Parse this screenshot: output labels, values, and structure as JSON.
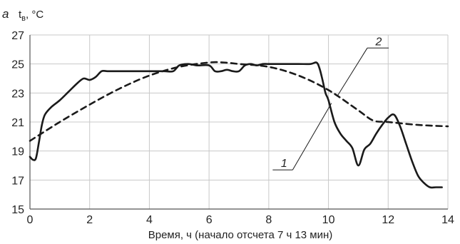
{
  "chart_data": {
    "type": "line",
    "panel_letter": "а",
    "ylabel_main": "t",
    "ylabel_sub": "в",
    "ylabel_unit": ", °C",
    "xlabel": "Время, ч (начало отсчета 7 ч 13 мин)",
    "xlim": [
      0,
      14
    ],
    "ylim": [
      15,
      27
    ],
    "xticks": [
      0,
      2,
      4,
      6,
      8,
      10,
      12,
      14
    ],
    "yticks": [
      15,
      17,
      19,
      21,
      23,
      25,
      27
    ],
    "grid": true,
    "series": [
      {
        "label": "1",
        "style": "solid",
        "x": [
          0.0,
          0.1,
          0.2,
          0.3,
          0.4,
          0.5,
          0.7,
          1.0,
          1.3,
          1.6,
          1.8,
          2.0,
          2.2,
          2.4,
          2.6,
          3.0,
          3.5,
          4.0,
          4.5,
          4.8,
          5.0,
          5.3,
          5.6,
          6.0,
          6.2,
          6.4,
          6.6,
          6.8,
          7.0,
          7.2,
          7.4,
          7.6,
          7.8,
          8.0,
          8.5,
          9.0,
          9.4,
          9.6,
          9.7,
          9.8,
          9.9,
          10.0,
          10.2,
          10.4,
          10.6,
          10.8,
          11.0,
          11.2,
          11.4,
          11.6,
          11.8,
          12.0,
          12.2,
          12.4,
          12.6,
          12.8,
          13.0,
          13.2,
          13.4,
          13.6,
          13.8
        ],
        "y": [
          18.6,
          18.4,
          18.5,
          19.6,
          20.8,
          21.5,
          22.0,
          22.5,
          23.1,
          23.7,
          24.0,
          23.9,
          24.1,
          24.5,
          24.5,
          24.5,
          24.5,
          24.5,
          24.5,
          24.5,
          24.9,
          25.0,
          24.9,
          24.9,
          24.5,
          24.5,
          24.6,
          24.5,
          24.5,
          24.9,
          25.0,
          24.9,
          25.0,
          25.0,
          25.0,
          25.0,
          25.0,
          25.1,
          24.7,
          23.9,
          23.0,
          22.5,
          21.0,
          20.2,
          19.7,
          19.2,
          18.0,
          19.1,
          19.5,
          20.2,
          20.8,
          21.3,
          21.5,
          20.7,
          19.5,
          18.3,
          17.3,
          16.8,
          16.5,
          16.5,
          16.5
        ]
      },
      {
        "label": "2",
        "style": "dashed",
        "x": [
          0.0,
          1.0,
          2.0,
          3.0,
          4.0,
          5.0,
          6.0,
          6.5,
          7.0,
          8.0,
          9.0,
          10.0,
          11.0,
          11.5,
          12.0,
          13.0,
          14.0
        ],
        "y": [
          19.7,
          21.0,
          22.2,
          23.3,
          24.2,
          24.8,
          25.1,
          25.1,
          25.0,
          24.8,
          24.2,
          23.2,
          21.8,
          21.1,
          21.0,
          20.8,
          20.7
        ]
      }
    ]
  }
}
